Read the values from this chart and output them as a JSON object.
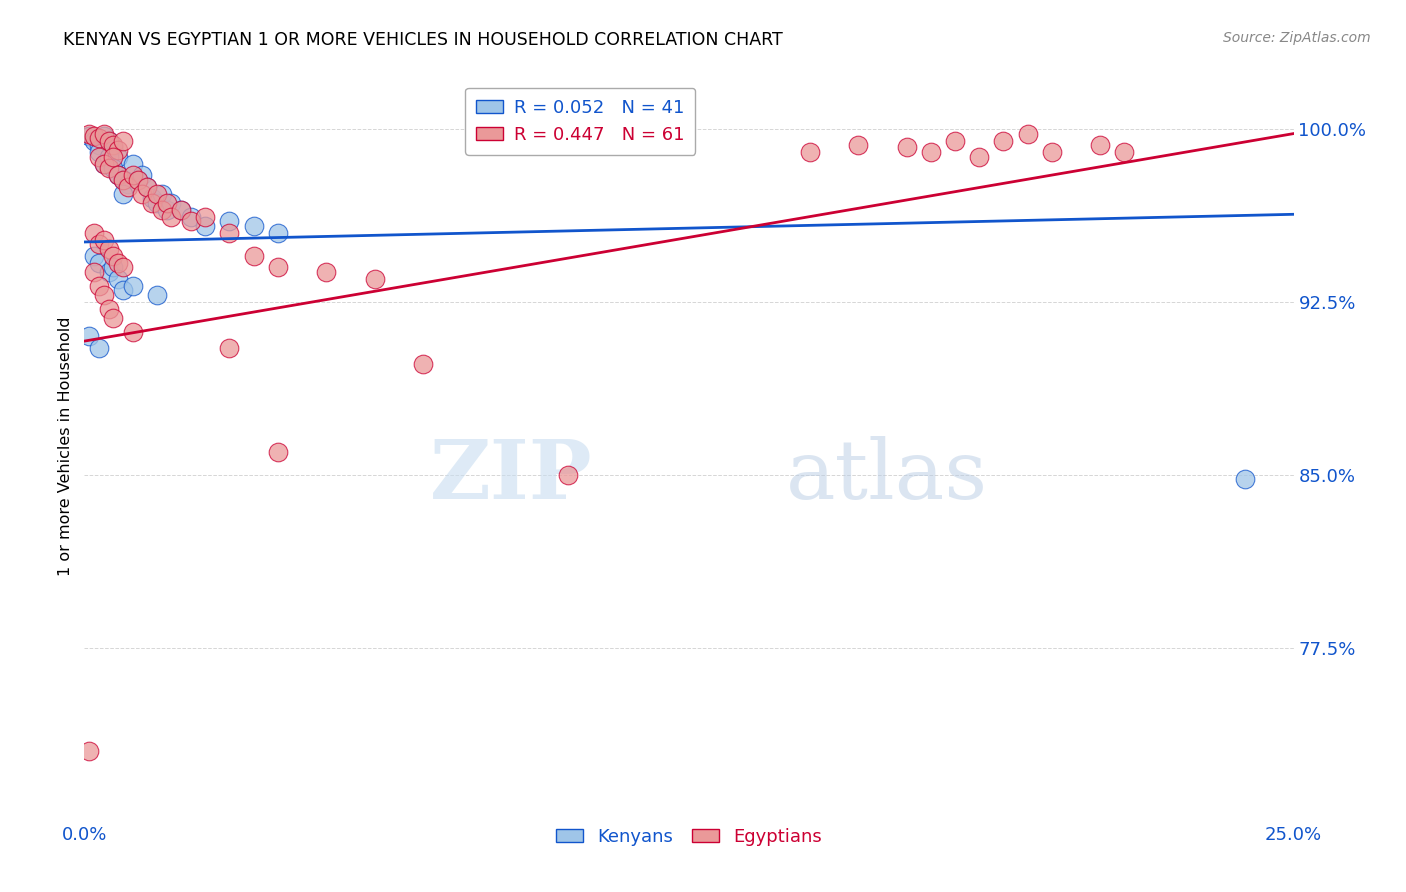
{
  "title": "KENYAN VS EGYPTIAN 1 OR MORE VEHICLES IN HOUSEHOLD CORRELATION CHART",
  "source": "Source: ZipAtlas.com",
  "ylabel": "1 or more Vehicles in Household",
  "xlim": [
    0.0,
    0.25
  ],
  "ylim": [
    0.7,
    1.025
  ],
  "yticks": [
    0.775,
    0.85,
    0.925,
    1.0
  ],
  "ytick_labels": [
    "77.5%",
    "85.0%",
    "92.5%",
    "100.0%"
  ],
  "xticks": [
    0.0,
    0.05,
    0.1,
    0.15,
    0.2,
    0.25
  ],
  "xtick_labels": [
    "0.0%",
    "",
    "",
    "",
    "",
    "25.0%"
  ],
  "legend_blue_r": "R = 0.052",
  "legend_blue_n": "N = 41",
  "legend_pink_r": "R = 0.447",
  "legend_pink_n": "N = 61",
  "watermark_zip": "ZIP",
  "watermark_atlas": "atlas",
  "blue_color": "#9fc5e8",
  "pink_color": "#ea9999",
  "line_blue": "#1155cc",
  "line_pink": "#cc0033",
  "blue_line_x": [
    0.0,
    0.25
  ],
  "blue_line_y": [
    0.951,
    0.963
  ],
  "pink_line_x": [
    0.0,
    0.25
  ],
  "pink_line_y": [
    0.908,
    0.998
  ],
  "kenyan_points": [
    [
      0.001,
      0.997
    ],
    [
      0.002,
      0.995
    ],
    [
      0.003,
      0.993
    ],
    [
      0.004,
      0.997
    ],
    [
      0.005,
      0.995
    ],
    [
      0.006,
      0.992
    ],
    [
      0.003,
      0.99
    ],
    [
      0.007,
      0.988
    ],
    [
      0.004,
      0.985
    ],
    [
      0.005,
      0.988
    ],
    [
      0.006,
      0.983
    ],
    [
      0.007,
      0.98
    ],
    [
      0.008,
      0.978
    ],
    [
      0.009,
      0.976
    ],
    [
      0.01,
      0.985
    ],
    [
      0.011,
      0.978
    ],
    [
      0.012,
      0.98
    ],
    [
      0.008,
      0.972
    ],
    [
      0.013,
      0.975
    ],
    [
      0.014,
      0.97
    ],
    [
      0.015,
      0.968
    ],
    [
      0.016,
      0.972
    ],
    [
      0.017,
      0.965
    ],
    [
      0.018,
      0.968
    ],
    [
      0.02,
      0.965
    ],
    [
      0.022,
      0.962
    ],
    [
      0.025,
      0.958
    ],
    [
      0.03,
      0.96
    ],
    [
      0.035,
      0.958
    ],
    [
      0.04,
      0.955
    ],
    [
      0.002,
      0.945
    ],
    [
      0.003,
      0.942
    ],
    [
      0.005,
      0.938
    ],
    [
      0.006,
      0.94
    ],
    [
      0.007,
      0.935
    ],
    [
      0.008,
      0.93
    ],
    [
      0.01,
      0.932
    ],
    [
      0.015,
      0.928
    ],
    [
      0.001,
      0.91
    ],
    [
      0.003,
      0.905
    ],
    [
      0.24,
      0.848
    ]
  ],
  "egyptian_points": [
    [
      0.001,
      0.998
    ],
    [
      0.002,
      0.997
    ],
    [
      0.003,
      0.996
    ],
    [
      0.004,
      0.998
    ],
    [
      0.005,
      0.995
    ],
    [
      0.006,
      0.993
    ],
    [
      0.007,
      0.991
    ],
    [
      0.008,
      0.995
    ],
    [
      0.003,
      0.988
    ],
    [
      0.004,
      0.985
    ],
    [
      0.005,
      0.983
    ],
    [
      0.006,
      0.988
    ],
    [
      0.007,
      0.98
    ],
    [
      0.008,
      0.978
    ],
    [
      0.009,
      0.975
    ],
    [
      0.01,
      0.98
    ],
    [
      0.011,
      0.978
    ],
    [
      0.012,
      0.972
    ],
    [
      0.013,
      0.975
    ],
    [
      0.014,
      0.968
    ],
    [
      0.015,
      0.972
    ],
    [
      0.016,
      0.965
    ],
    [
      0.017,
      0.968
    ],
    [
      0.018,
      0.962
    ],
    [
      0.02,
      0.965
    ],
    [
      0.022,
      0.96
    ],
    [
      0.025,
      0.962
    ],
    [
      0.03,
      0.955
    ],
    [
      0.002,
      0.955
    ],
    [
      0.003,
      0.95
    ],
    [
      0.004,
      0.952
    ],
    [
      0.005,
      0.948
    ],
    [
      0.006,
      0.945
    ],
    [
      0.007,
      0.942
    ],
    [
      0.008,
      0.94
    ],
    [
      0.035,
      0.945
    ],
    [
      0.04,
      0.94
    ],
    [
      0.05,
      0.938
    ],
    [
      0.06,
      0.935
    ],
    [
      0.15,
      0.99
    ],
    [
      0.16,
      0.993
    ],
    [
      0.17,
      0.992
    ],
    [
      0.175,
      0.99
    ],
    [
      0.18,
      0.995
    ],
    [
      0.185,
      0.988
    ],
    [
      0.19,
      0.995
    ],
    [
      0.195,
      0.998
    ],
    [
      0.2,
      0.99
    ],
    [
      0.21,
      0.993
    ],
    [
      0.215,
      0.99
    ],
    [
      0.002,
      0.938
    ],
    [
      0.003,
      0.932
    ],
    [
      0.004,
      0.928
    ],
    [
      0.005,
      0.922
    ],
    [
      0.006,
      0.918
    ],
    [
      0.01,
      0.912
    ],
    [
      0.03,
      0.905
    ],
    [
      0.07,
      0.898
    ],
    [
      0.04,
      0.86
    ],
    [
      0.1,
      0.85
    ],
    [
      0.001,
      0.73
    ]
  ]
}
